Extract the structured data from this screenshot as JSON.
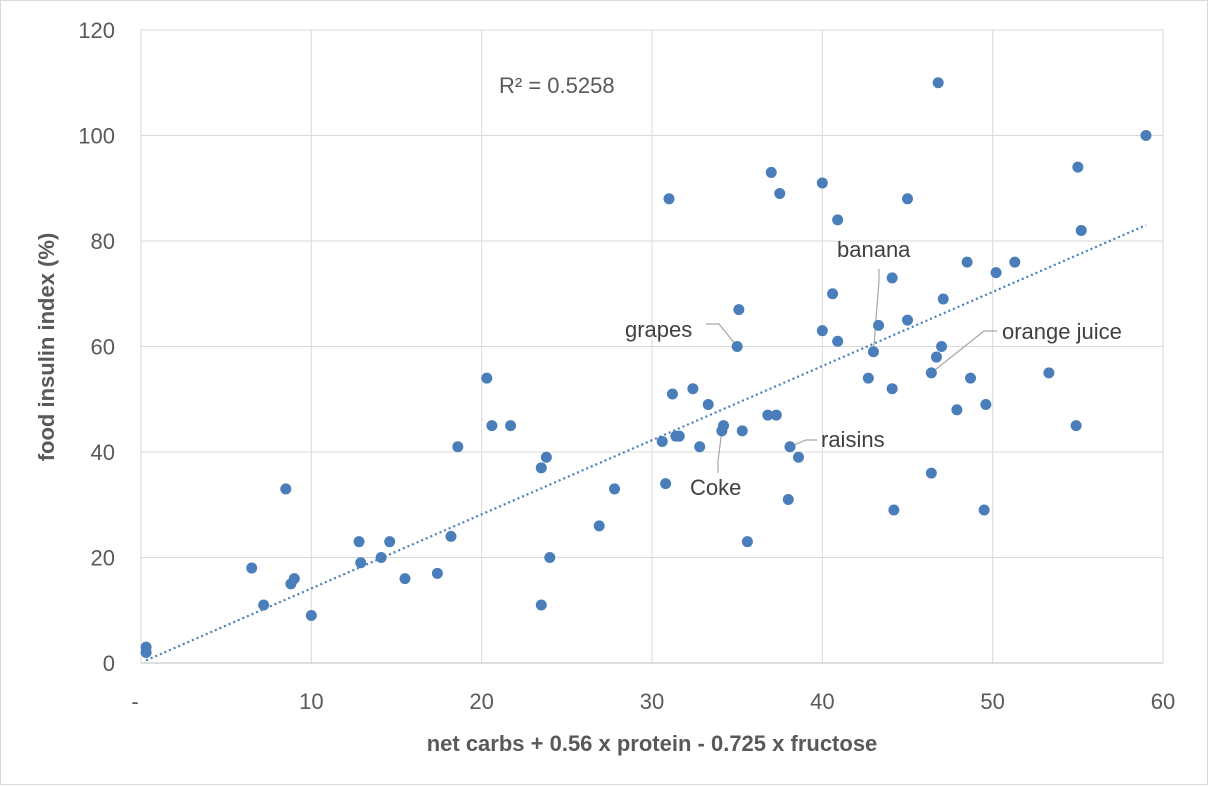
{
  "chart_data": {
    "type": "scatter",
    "title": "",
    "xlabel": "net carbs + 0.56 x protein - 0.725 x fructose",
    "ylabel": "food insulin index (%)",
    "xlim": [
      0,
      60
    ],
    "ylim": [
      0,
      120
    ],
    "x_ticks": [
      0,
      10,
      20,
      30,
      40,
      50,
      60
    ],
    "x_tick_labels": [
      "-",
      "10",
      "20",
      "30",
      "40",
      "50",
      "60"
    ],
    "y_ticks": [
      0,
      20,
      40,
      60,
      80,
      100,
      120
    ],
    "y_tick_labels": [
      "0",
      "20",
      "40",
      "60",
      "80",
      "100",
      "120"
    ],
    "grid": true,
    "color": "#4a7ebb",
    "r_squared_label": "R² = 0.5258",
    "trendline": {
      "type": "linear",
      "x": [
        0.3,
        59
      ],
      "y": [
        0.5,
        83
      ],
      "style": "dotted"
    },
    "points": [
      [
        0.3,
        3
      ],
      [
        0.3,
        2
      ],
      [
        6.5,
        18
      ],
      [
        7.2,
        11
      ],
      [
        8.5,
        33
      ],
      [
        8.8,
        15
      ],
      [
        9,
        16
      ],
      [
        10,
        9
      ],
      [
        12.8,
        23
      ],
      [
        12.9,
        19
      ],
      [
        14.1,
        20
      ],
      [
        14.6,
        23
      ],
      [
        15.5,
        16
      ],
      [
        17.4,
        17
      ],
      [
        18.2,
        24
      ],
      [
        18.6,
        41
      ],
      [
        20.3,
        54
      ],
      [
        20.6,
        45
      ],
      [
        21.7,
        45
      ],
      [
        23.5,
        37
      ],
      [
        23.8,
        39
      ],
      [
        23.5,
        11
      ],
      [
        24,
        20
      ],
      [
        26.9,
        26
      ],
      [
        27.8,
        33
      ],
      [
        30.6,
        42
      ],
      [
        30.8,
        34
      ],
      [
        31,
        88
      ],
      [
        31.2,
        51
      ],
      [
        31.4,
        43
      ],
      [
        31.6,
        43
      ],
      [
        32.4,
        52
      ],
      [
        32.8,
        41
      ],
      [
        33.3,
        49
      ],
      [
        34.1,
        44
      ],
      [
        34.2,
        45
      ],
      [
        35,
        60
      ],
      [
        35.1,
        67
      ],
      [
        35.3,
        44
      ],
      [
        35.6,
        23
      ],
      [
        36.8,
        47
      ],
      [
        37,
        93
      ],
      [
        37.3,
        47
      ],
      [
        37.5,
        89
      ],
      [
        38,
        31
      ],
      [
        38.1,
        41
      ],
      [
        38.6,
        39
      ],
      [
        40,
        91
      ],
      [
        40,
        63
      ],
      [
        40.6,
        70
      ],
      [
        40.9,
        61
      ],
      [
        40.9,
        84
      ],
      [
        42.7,
        54
      ],
      [
        43,
        59
      ],
      [
        43.3,
        64
      ],
      [
        44.1,
        73
      ],
      [
        44.1,
        52
      ],
      [
        44.2,
        29
      ],
      [
        45,
        65
      ],
      [
        45,
        88
      ],
      [
        46.4,
        55
      ],
      [
        46.4,
        36
      ],
      [
        46.7,
        58
      ],
      [
        46.8,
        110
      ],
      [
        47,
        60
      ],
      [
        47.1,
        69
      ],
      [
        47.9,
        48
      ],
      [
        48.5,
        76
      ],
      [
        48.7,
        54
      ],
      [
        49.5,
        29
      ],
      [
        49.6,
        49
      ],
      [
        50.2,
        74
      ],
      [
        51.3,
        76
      ],
      [
        53.3,
        55
      ],
      [
        54.9,
        45
      ],
      [
        55,
        94
      ],
      [
        55.2,
        82
      ],
      [
        59,
        100
      ]
    ],
    "annotations": [
      {
        "text": "grapes",
        "point": [
          35,
          60
        ]
      },
      {
        "text": "banana",
        "point": [
          43,
          59
        ]
      },
      {
        "text": "orange juice",
        "point": [
          46.4,
          55
        ]
      },
      {
        "text": "raisins",
        "point": [
          38.1,
          41
        ]
      },
      {
        "text": "Coke",
        "point": [
          34.1,
          44
        ]
      }
    ]
  }
}
